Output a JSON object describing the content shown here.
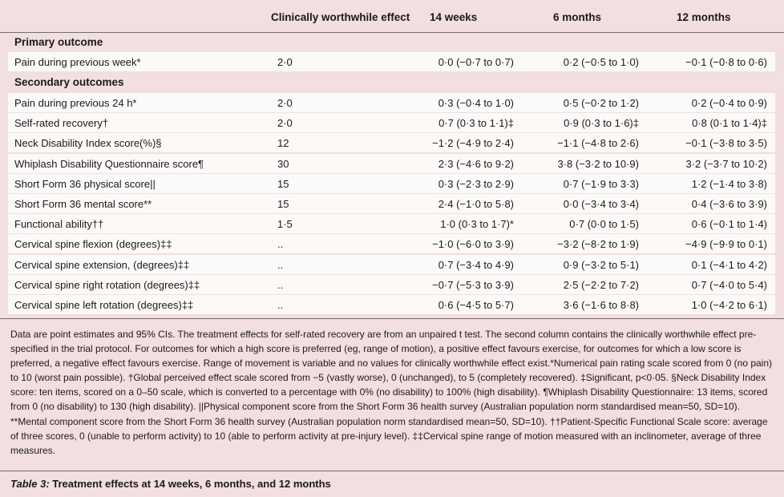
{
  "header": {
    "col1": "Clinically worthwhile effect",
    "col2": "14 weeks",
    "col3": "6 months",
    "col4": "12 months"
  },
  "primary": {
    "title": "Primary outcome",
    "rows": [
      [
        "Pain during previous week*",
        "2·0",
        "0·0 (−0·7 to 0·7)",
        "0·2 (−0·5 to 1·0)",
        "−0·1 (−0·8 to 0·6)"
      ]
    ]
  },
  "secondary": {
    "title": "Secondary outcomes",
    "rows": [
      [
        "Pain during previous 24 h*",
        "2·0",
        "0·3 (−0·4 to 1·0)",
        "0·5 (−0·2 to 1·2)",
        "0·2 (−0·4 to 0·9)"
      ],
      [
        "Self-rated recovery†",
        "2·0",
        "0·7 (0·3 to 1·1)‡",
        "0·9 (0·3 to 1·6)‡",
        "0·8 (0·1 to 1·4)‡"
      ],
      [
        "Neck Disability Index score(%)§",
        "12",
        "−1·2 (−4·9 to 2·4)",
        "−1·1 (−4·8 to 2·6)",
        "−0·1 (−3·8 to 3·5)"
      ],
      [
        "Whiplash Disability Questionnaire score¶",
        "30",
        "2·3 (−4·6 to 9·2)",
        "3·8 (−3·2 to 10·9)",
        "3·2 (−3·7 to 10·2)"
      ],
      [
        "Short Form 36 physical score||",
        "15",
        "0·3 (−2·3 to 2·9)",
        "0·7 (−1·9 to 3·3)",
        "1·2 (−1·4 to 3·8)"
      ],
      [
        "Short Form 36 mental score**",
        "15",
        "2·4 (−1·0 to 5·8)",
        "0·0 (−3·4 to 3·4)",
        "0·4 (−3·6 to 3·9)"
      ],
      [
        "Functional ability††",
        "1·5",
        "1·0 (0·3 to 1·7)*",
        "0·7 (0·0 to 1·5)",
        "0·6 (−0·1 to 1·4)"
      ],
      [
        "Cervical spine flexion (degrees)‡‡",
        "..",
        "−1·0 (−6·0 to 3·9)",
        "−3·2 (−8·2 to 1·9)",
        "−4·9 (−9·9 to 0·1)"
      ],
      [
        "Cervical spine extension, (degrees)‡‡",
        "..",
        "0·7 (−3·4 to 4·9)",
        "0·9 (−3·2 to 5·1)",
        "0·1 (−4·1 to 4·2)"
      ],
      [
        "Cervical spine right rotation (degrees)‡‡",
        "..",
        "−0·7 (−5·3 to 3·9)",
        "2·5 (−2·2 to 7·2)",
        "0·7 (−4·0 to 5·4)"
      ],
      [
        "Cervical spine left rotation (degrees)‡‡",
        "..",
        "0·6 (−4·5 to 5·7)",
        "3·6 (−1·6 to 8·8)",
        "1·0 (−4·2 to 6·1)"
      ]
    ]
  },
  "footnote": "Data are point estimates and 95% CIs. The treatment effects for self-rated recovery are from an unpaired t test. The second column contains the clinically worthwhile effect pre-specified in the trial protocol. For outcomes for which a high score is preferred (eg, range of motion), a positive effect favours exercise, for outcomes for which a low score is preferred, a negative effect favours exercise. Range of movement is variable and no values for clinically worthwhile effect exist.*Numerical pain rating scale scored from 0 (no pain) to 10 (worst pain possible). †Global perceived effect scale scored from −5 (vastly worse), 0 (unchanged), to 5 (completely recovered). ‡Significant, p<0·05. §Neck Disability Index score: ten items, scored on a 0–50 scale, which is converted to a percentage with 0% (no disability) to 100% (high disability). ¶Whiplash Disability Questionnaire: 13 items, scored from 0 (no disability) to 130 (high disability). ||Physical component score from the Short Form 36 health survey (Australian population norm standardised mean=50, SD=10). **Mental component score from the Short Form 36 health survey (Australian population norm standardised mean=50, SD=10). ††Patient-Specific Functional Scale score: average of three scores, 0 (unable to perform activity) to 10 (able to perform activity at pre-injury level). ‡‡Cervical spine range of motion measured with an inclinometer, average of three measures.",
  "caption": {
    "label": "Table 3:",
    "text": " Treatment effects at 14 weeks, 6 months, and 12 months"
  }
}
